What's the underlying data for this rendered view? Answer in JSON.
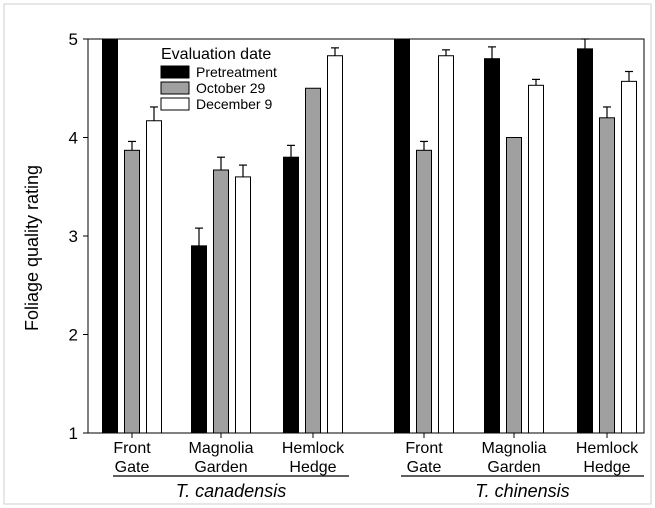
{
  "chart_data": {
    "type": "bar",
    "ylabel": "Foliage quality rating",
    "ylim": [
      1,
      5
    ],
    "yticks": [
      "1",
      "2",
      "3",
      "4",
      "5"
    ],
    "legend": {
      "title": "Evaluation date",
      "placement": "top-left"
    },
    "series": [
      {
        "name": "Pretreatment",
        "color": "#000000"
      },
      {
        "name": "October 29",
        "color": "#a0a0a0"
      },
      {
        "name": "December 9",
        "color": "#ffffff"
      }
    ],
    "groups": [
      {
        "label": "T. canadensis",
        "categories": [
          {
            "line1": "Front",
            "line2": "Gate",
            "values": [
              5.0,
              3.87,
              4.17
            ],
            "errors": [
              0,
              0.09,
              0.14
            ]
          },
          {
            "line1": "Magnolia",
            "line2": "Garden",
            "values": [
              2.9,
              3.67,
              3.6
            ],
            "errors": [
              0.18,
              0.13,
              0.12
            ]
          },
          {
            "line1": "Hemlock",
            "line2": "Hedge",
            "values": [
              3.8,
              4.5,
              4.83
            ],
            "errors": [
              0.12,
              0,
              0.08
            ]
          }
        ]
      },
      {
        "label": "T. chinensis",
        "categories": [
          {
            "line1": "Front",
            "line2": "Gate",
            "values": [
              5.0,
              3.87,
              4.83
            ],
            "errors": [
              0,
              0.09,
              0.06
            ]
          },
          {
            "line1": "Magnolia",
            "line2": "Garden",
            "values": [
              4.8,
              4.0,
              4.53
            ],
            "errors": [
              0.12,
              0,
              0.06
            ]
          },
          {
            "line1": "Hemlock",
            "line2": "Hedge",
            "values": [
              4.9,
              4.2,
              4.57
            ],
            "errors": [
              0.1,
              0.11,
              0.1
            ]
          }
        ]
      }
    ]
  }
}
